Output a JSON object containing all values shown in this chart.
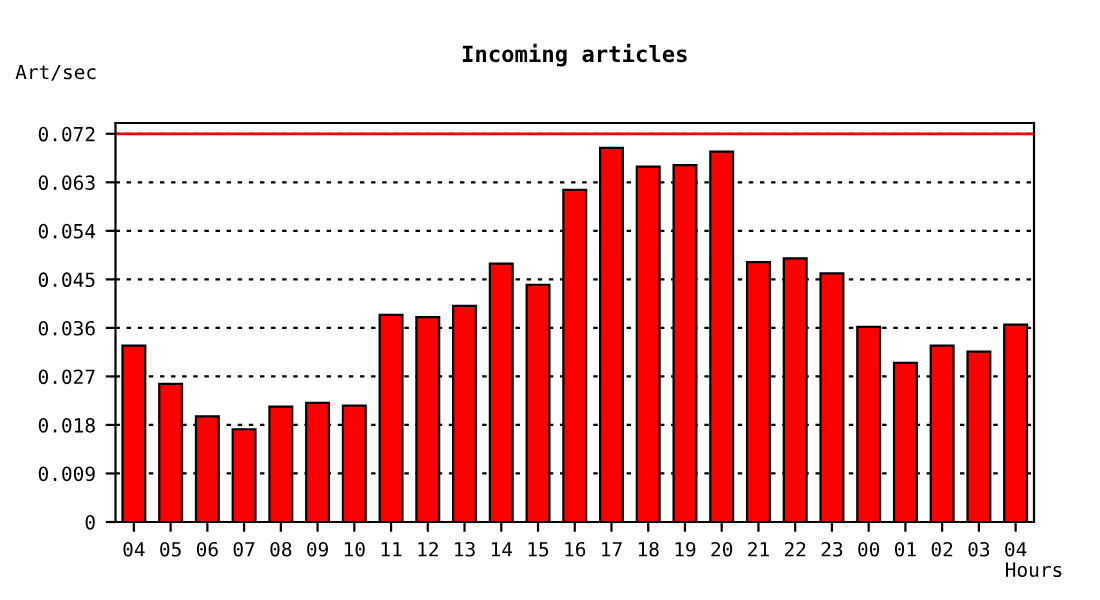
{
  "chart_data": {
    "type": "bar",
    "title": "Incoming articles",
    "ylabel": "Art/sec",
    "xlabel": "Hours",
    "categories": [
      "04",
      "05",
      "06",
      "07",
      "08",
      "09",
      "10",
      "11",
      "12",
      "13",
      "14",
      "15",
      "16",
      "17",
      "18",
      "19",
      "20",
      "21",
      "22",
      "23",
      "00",
      "01",
      "02",
      "03",
      "04"
    ],
    "series": [
      {
        "color": "#ff0000",
        "values": [
          0.0327,
          0.0256,
          0.0196,
          0.0172,
          0.0214,
          0.0221,
          0.0216,
          0.0384,
          0.038,
          0.0401,
          0.0479,
          0.044,
          0.0616,
          0.0694,
          0.0659,
          0.0662,
          0.0687,
          0.0482,
          0.0489,
          0.0461,
          0.0362,
          0.0295,
          0.0327,
          0.0316,
          0.0366
        ]
      }
    ],
    "ylim": [
      0,
      0.074
    ],
    "yticks": [
      0,
      0.009,
      0.018,
      0.027,
      0.036,
      0.045,
      0.054,
      0.063,
      0.072
    ],
    "grid": "y",
    "ref_lines": [
      {
        "axis": "y",
        "value": 0.072,
        "color": "#ff0000"
      }
    ]
  }
}
